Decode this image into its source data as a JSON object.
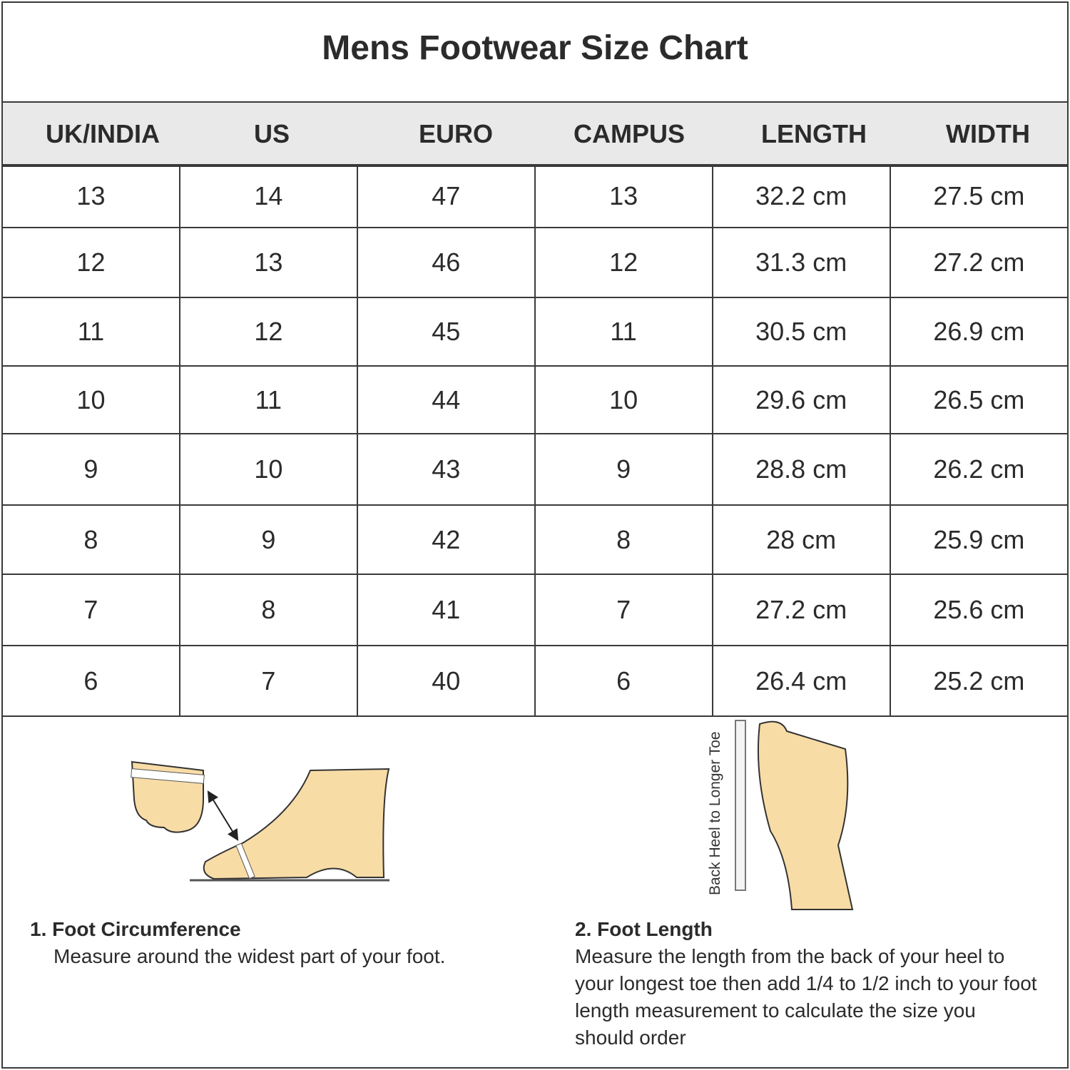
{
  "title": "Mens Footwear Size Chart",
  "table": {
    "headers": [
      "UK/INDIA",
      "US",
      "EURO",
      "CAMPUS",
      "LENGTH",
      "WIDTH"
    ],
    "rows": [
      [
        "13",
        "14",
        "47",
        "13",
        "32.2 cm",
        "27.5 cm"
      ],
      [
        "12",
        "13",
        "46",
        "12",
        "31.3 cm",
        "27.2 cm"
      ],
      [
        "11",
        "12",
        "45",
        "11",
        "30.5 cm",
        "26.9 cm"
      ],
      [
        "10",
        "11",
        "44",
        "10",
        "29.6 cm",
        "26.5 cm"
      ],
      [
        "9",
        "10",
        "43",
        "9",
        "28.8 cm",
        "26.2 cm"
      ],
      [
        "8",
        "9",
        "42",
        "8",
        "28 cm",
        "25.9 cm"
      ],
      [
        "7",
        "8",
        "41",
        "7",
        "27.2 cm",
        "25.6 cm"
      ],
      [
        "6",
        "7",
        "40",
        "6",
        "26.4 cm",
        "25.2 cm"
      ]
    ]
  },
  "illustrations": {
    "ruler_label": "Back Heel to Longer Toe",
    "foot_color": "#f8dca6"
  },
  "instructions": [
    {
      "heading": "1. Foot Circumference",
      "text": "Measure around the widest part of your foot."
    },
    {
      "heading": "2. Foot Length",
      "text": "Measure the length from the back of your heel to your longest toe then add 1/4 to 1/2 inch to your foot length measurement to calculate the size you should order"
    }
  ]
}
